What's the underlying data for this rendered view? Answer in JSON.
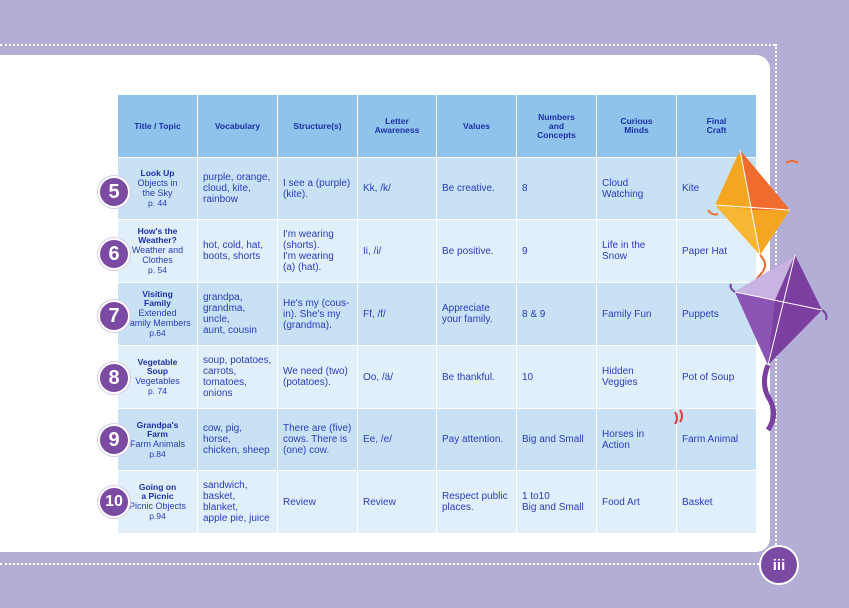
{
  "headers": [
    "Title / Topic",
    "Vocabulary",
    "Structure(s)",
    "Letter\nAwareness",
    "Values",
    "Numbers\nand\nConcepts",
    "Curious\nMinds",
    "Final\nCraft"
  ],
  "rows": [
    {
      "number": "5",
      "title": "Look Up",
      "topic": "Objects in\nthe Sky",
      "page": "p. 44",
      "vocabulary": "purple, orange,\ncloud, kite,\nrainbow",
      "structure": "I see a (purple)\n(kite).",
      "letter": "Kk, /k/",
      "values": "Be creative.",
      "numbers": "8",
      "curious": "Cloud\nWatching",
      "craft": "Kite"
    },
    {
      "number": "6",
      "title": "How's the\nWeather?",
      "topic": "Weather and\nClothes",
      "page": "p. 54",
      "vocabulary": "hot, cold, hat,\nboots, shorts",
      "structure": "I'm wearing\n(shorts).\nI'm wearing\n(a) (hat).",
      "letter": "Ii, /i/",
      "values": "Be positive.",
      "numbers": "9",
      "curious": "Life in the Snow",
      "craft": "Paper Hat"
    },
    {
      "number": "7",
      "title": "Visiting\nFamily",
      "topic": "Extended\nFamily Members",
      "page": "p.64",
      "vocabulary": "grandpa,\ngrandma,\nuncle,\naunt, cousin",
      "structure": "He's my (cous-\nin). She's my\n(grandma).",
      "letter": "Ff, /f/",
      "values": "Appreciate\nyour family.",
      "numbers": "8 & 9",
      "curious": "Family Fun",
      "craft": "Puppets"
    },
    {
      "number": "8",
      "title": "Vegetable\nSoup",
      "topic": "Vegetables",
      "page": "p. 74",
      "vocabulary": "soup, potatoes,\ncarrots,\ntomatoes,\nonions",
      "structure": "We need (two)\n(potatoes).",
      "letter": "Oo, /ä/",
      "values": "Be thankful.",
      "numbers": "10",
      "curious": "Hidden\nVeggies",
      "craft": "Pot of Soup"
    },
    {
      "number": "9",
      "title": "Grandpa's\nFarm",
      "topic": "Farm Animals",
      "page": "p.84",
      "vocabulary": "cow, pig, horse,\nchicken, sheep",
      "structure": "There are (five)\ncows. There is\n(one) cow.",
      "letter": "Ee, /e/",
      "values": "Pay attention.",
      "numbers": "Big and Small",
      "curious": "Horses in\nAction",
      "craft": "Farm Animal"
    },
    {
      "number": "10",
      "title": "Going on\na Picnic",
      "topic": "Picnic Objects",
      "page": "p.94",
      "vocabulary": "sandwich,\nbasket, blanket,\napple pie, juice",
      "structure": "Review",
      "letter": "Review",
      "values": "Respect public\nplaces.",
      "numbers": "1 to10\nBig and Small",
      "curious": "Food Art",
      "craft": "Basket"
    }
  ],
  "page_number": "iii",
  "colors": {
    "header": "#8fc3eb",
    "row_dark": "#c9e1f5",
    "row_light": "#e1effa",
    "purple": "#7b4aa3",
    "background": "#b3aed6"
  }
}
